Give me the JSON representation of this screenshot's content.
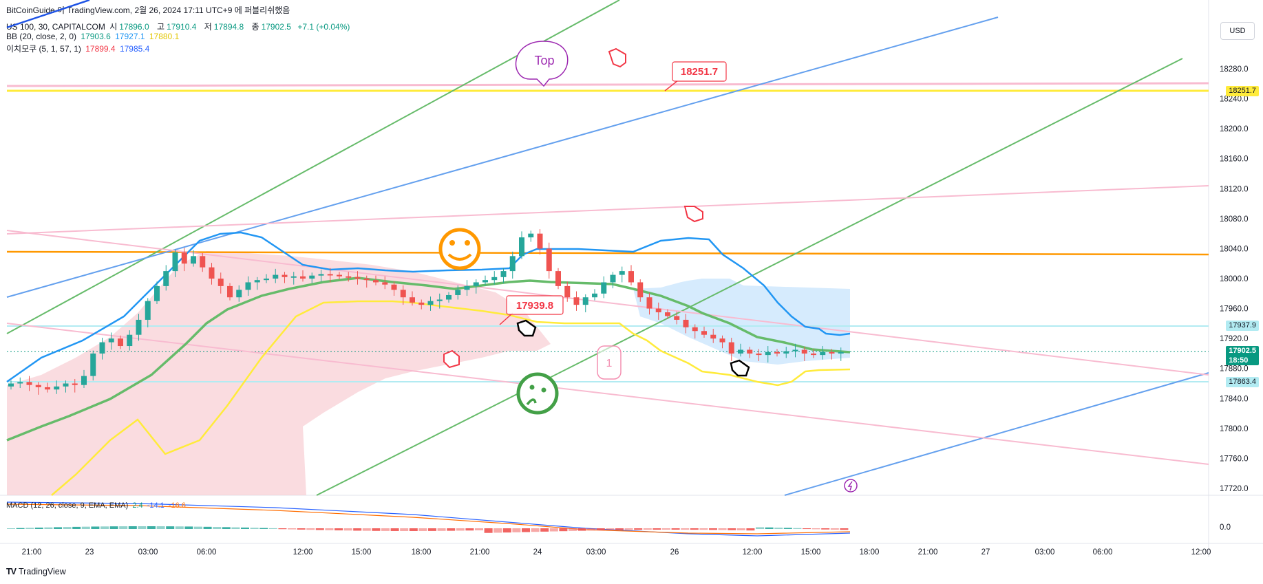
{
  "title": "BitCoinGuide 이 TradingView.com, 2월 26, 2024 17:11 UTC+9 에 퍼블리쉬했음",
  "symbol_line": {
    "symbol": "US 100, 30, CAPITALCOM",
    "open_lbl": "시",
    "open": "17896.0",
    "high_lbl": "고",
    "high": "17910.4",
    "low_lbl": "저",
    "low": "17894.8",
    "close_lbl": "종",
    "close": "17902.5",
    "change": "+7.1 (+0.04%)"
  },
  "bb_line": {
    "label": "BB (20, close, 2, 0)",
    "basis": "17903.6",
    "upper": "17927.1",
    "lower": "17880.1"
  },
  "ichimoku_line": {
    "label": "이치모쿠 (5, 1, 57, 1)",
    "v1": "17899.4",
    "v2": "17985.4"
  },
  "currency_button": "USD",
  "price_axis": [
    "18280.0",
    "18240.0",
    "18200.0",
    "18160.0",
    "18120.0",
    "18080.0",
    "18040.0",
    "18000.0",
    "17960.0",
    "17920.0",
    "17880.0",
    "17840.0",
    "17800.0",
    "17760.0",
    "17720.0"
  ],
  "price_tags": {
    "top_level": "18251.7",
    "mid_level": "17937.9",
    "current": "17902.5",
    "countdown": "18:50",
    "low_level": "17863.4"
  },
  "macd_line": {
    "label": "MACD (12, 26, close, 9, EMA, EMA)",
    "v1": "2.4",
    "v2": "-14.1",
    "v3": "-16.6"
  },
  "macd_axis": [
    "0.0"
  ],
  "time_axis": [
    "21:00",
    "23",
    "03:00",
    "06:00",
    "12:00",
    "15:00",
    "18:00",
    "21:00",
    "24",
    "03:00",
    "26",
    "12:00",
    "15:00",
    "18:00",
    "21:00",
    "27",
    "03:00",
    "06:00",
    "12:00"
  ],
  "annotations": {
    "top_bubble": "Top",
    "callout_high": "18251.7",
    "callout_mid": "17939.8",
    "number_badge": "1"
  },
  "footer": {
    "logo": "TV",
    "brand": "TradingView"
  },
  "colors": {
    "up": "#26a69a",
    "down": "#ef5350",
    "bb_upper": "#2196f3",
    "bb_basis": "#4caf50",
    "bb_lower": "#ffeb3b",
    "cloud": "#f8c9cf"
  },
  "chart_data": {
    "type": "candlestick",
    "ylim": [
      17700,
      18300
    ],
    "candles_close": [
      17860,
      17862,
      17858,
      17855,
      17852,
      17856,
      17860,
      17858,
      17870,
      17900,
      17915,
      17920,
      17910,
      17925,
      17945,
      17970,
      17990,
      18010,
      18035,
      18020,
      18030,
      18015,
      18000,
      17990,
      17975,
      17985,
      17995,
      17998,
      18000,
      18005,
      18002,
      18003,
      18000,
      18004,
      18006,
      18005,
      18003,
      18002,
      18000,
      17998,
      17995,
      17992,
      17985,
      17975,
      17968,
      17965,
      17970,
      17972,
      17978,
      17985,
      17990,
      17995,
      17998,
      18002,
      18010,
      18030,
      18055,
      18060,
      18040,
      18010,
      17990,
      17975,
      17965,
      17975,
      17980,
      17995,
      18005,
      18010,
      17995,
      17975,
      17960,
      17955,
      17950,
      17945,
      17935,
      17930,
      17925,
      17920,
      17915,
      17900,
      17905,
      17900,
      17898,
      17902,
      17900,
      17903,
      17905,
      17900,
      17898,
      17902,
      17900,
      17902
    ]
  }
}
